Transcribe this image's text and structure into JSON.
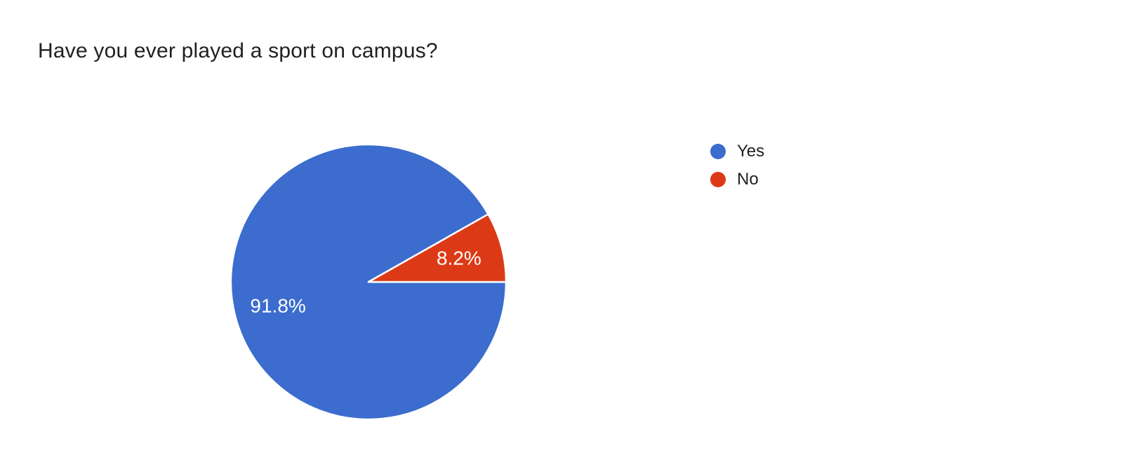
{
  "header": {
    "title": "Have you ever played a sport on campus?"
  },
  "chart_data": {
    "type": "pie",
    "title": "Have you ever played a sport on campus?",
    "categories": [
      "Yes",
      "No"
    ],
    "values": [
      91.8,
      8.2
    ],
    "slice_labels": [
      "91.8%",
      "8.2%"
    ],
    "colors": [
      "#3b6cce",
      "#dc3a16"
    ],
    "slice_label_color": "#ffffff",
    "slice_border_color": "#ffffff",
    "legend_position": "right",
    "start_angle": "3-oclock",
    "direction": "clockwise"
  },
  "colors": {
    "background": "#ffffff",
    "title_text": "#202124",
    "legend_text": "#212121"
  }
}
